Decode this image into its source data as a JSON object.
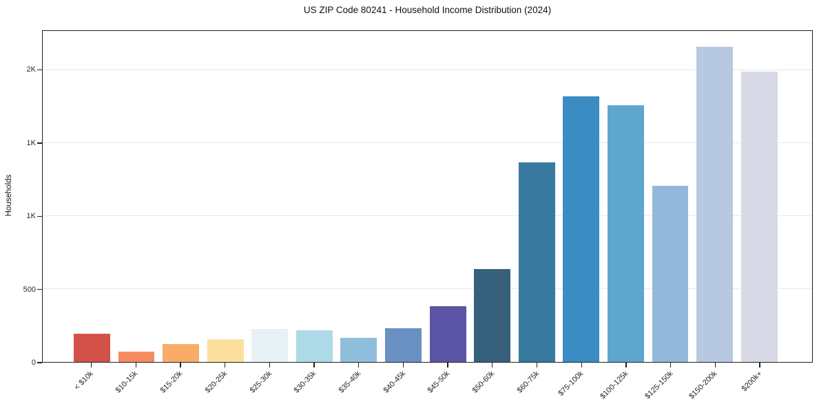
{
  "chart_data": {
    "type": "bar",
    "title": "US ZIP Code 80241 - Household Income Distribution (2024)",
    "xlabel": "",
    "ylabel": "Households",
    "categories": [
      "< $10k",
      "$10-15k",
      "$15-20k",
      "$20-25k",
      "$25-30k",
      "$30-35k",
      "$35-40k",
      "$40-45k",
      "$45-50k",
      "$50-60k",
      "$60-75k",
      "$75-100k",
      "$100-125k",
      "$125-150k",
      "$150-200k",
      "$200k+"
    ],
    "values": [
      195,
      70,
      125,
      155,
      225,
      215,
      165,
      230,
      380,
      635,
      1370,
      1820,
      1760,
      1210,
      2160,
      1990
    ],
    "bar_colors": [
      "#d25249",
      "#f58b62",
      "#f9ac67",
      "#fcdf9e",
      "#e7f2f5",
      "#aedae8",
      "#8fbedd",
      "#6b90c4",
      "#5b54a7",
      "#36607b",
      "#37799f",
      "#3a8cc2",
      "#5fa6cd",
      "#92b8da",
      "#b7c8e1",
      "#d7d9e7"
    ],
    "yticks": [
      {
        "value": 0,
        "label": "0"
      },
      {
        "value": 500,
        "label": "500"
      },
      {
        "value": 1000,
        "label": "1K"
      },
      {
        "value": 1500,
        "label": "1K"
      },
      {
        "value": 2000,
        "label": "2K"
      }
    ],
    "ylim": [
      0,
      2270
    ],
    "grid": "horizontal",
    "legend": "none",
    "plot_background": "#ffffff",
    "spine_color": "#1f1f1f"
  }
}
